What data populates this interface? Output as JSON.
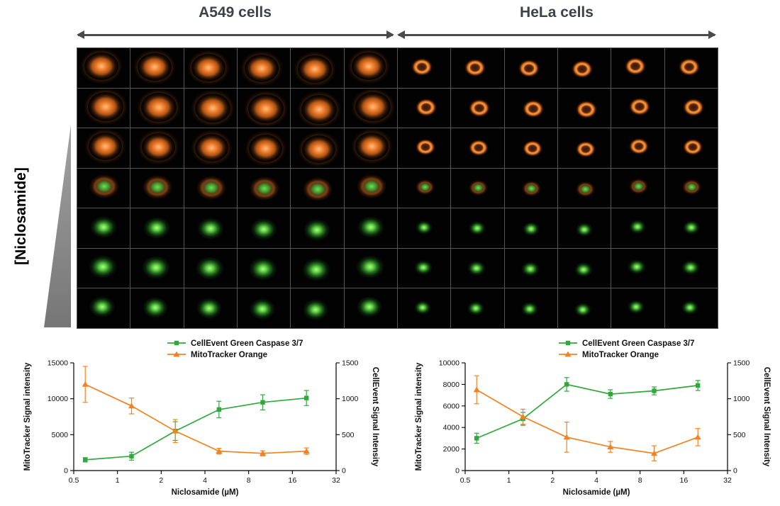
{
  "figure": {
    "concentration_label": "[Niclosamide]",
    "groups": [
      {
        "label": "A549 cells"
      },
      {
        "label": "HeLa cells"
      }
    ]
  },
  "grid": {
    "columns_per_group": 6,
    "groups": [
      "A549",
      "HeLa"
    ],
    "rows": [
      {
        "stain": "orange",
        "a549_size": 48,
        "hela_size": 30
      },
      {
        "stain": "orange",
        "a549_size": 50,
        "hela_size": 30
      },
      {
        "stain": "orange",
        "a549_size": 47,
        "hela_size": 28
      },
      {
        "stain": "mixed",
        "a549_size": 42,
        "hela_size": 27
      },
      {
        "stain": "green",
        "a549_size": 38,
        "hela_size": 24
      },
      {
        "stain": "green",
        "a549_size": 40,
        "hela_size": 26
      },
      {
        "stain": "green",
        "a549_size": 36,
        "hela_size": 24
      }
    ]
  },
  "chart_data": [
    {
      "type": "line",
      "name": "A549",
      "xlabel": "Niclosamide (µM)",
      "ylabel_left": "MitoTracker Signal intensity",
      "ylabel_right": "CellEvent Signal Intensity",
      "xscale": "log",
      "xlim": [
        0.5,
        32
      ],
      "x_ticks": [
        0.5,
        1,
        2,
        4,
        8,
        16,
        32
      ],
      "x": [
        0.6,
        1.25,
        2.5,
        5,
        10,
        20
      ],
      "ylim_left": [
        0,
        15000
      ],
      "yticks_left": [
        0,
        5000,
        10000,
        15000
      ],
      "ylim_right": [
        0,
        1500
      ],
      "yticks_right": [
        0,
        500,
        1000,
        1500
      ],
      "legend_position": "top",
      "grid_lines": false,
      "series": [
        {
          "name": "CellEvent Green Caspase 3/7",
          "axis": "right",
          "color": "#2fa93c",
          "marker": "square",
          "values": [
            150,
            200,
            550,
            850,
            950,
            1010
          ],
          "errors": [
            30,
            55,
            130,
            115,
            105,
            105
          ]
        },
        {
          "name": "MitoTracker Orange",
          "axis": "left",
          "color": "#f58220",
          "marker": "triangle",
          "values": [
            12000,
            9000,
            5500,
            2700,
            2400,
            2700
          ],
          "errors": [
            2500,
            1100,
            1600,
            400,
            350,
            450
          ]
        }
      ]
    },
    {
      "type": "line",
      "name": "HeLa",
      "xlabel": "Niclosamide (µM)",
      "ylabel_left": "MitoTracker Signal intensity",
      "ylabel_right": "CellEvent Signal Intensity",
      "xscale": "log",
      "xlim": [
        0.5,
        32
      ],
      "x_ticks": [
        0.5,
        1,
        2,
        4,
        8,
        16,
        32
      ],
      "x": [
        0.6,
        1.25,
        2.5,
        5,
        10,
        20
      ],
      "ylim_left": [
        0,
        10000
      ],
      "yticks_left": [
        0,
        2000,
        4000,
        6000,
        8000,
        10000
      ],
      "ylim_right": [
        0,
        1500
      ],
      "yticks_right": [
        0,
        500,
        1000,
        1500
      ],
      "legend_position": "top",
      "grid_lines": false,
      "series": [
        {
          "name": "CellEvent Green Caspase 3/7",
          "axis": "right",
          "color": "#2fa93c",
          "marker": "square",
          "values": [
            450,
            720,
            1200,
            1065,
            1110,
            1185
          ],
          "errors": [
            70,
            90,
            95,
            60,
            55,
            70
          ]
        },
        {
          "name": "MitoTracker Orange",
          "axis": "left",
          "color": "#f58220",
          "marker": "triangle",
          "values": [
            7500,
            5000,
            3100,
            2200,
            1600,
            3100
          ],
          "errors": [
            1300,
            700,
            1400,
            500,
            700,
            800
          ]
        }
      ]
    }
  ]
}
